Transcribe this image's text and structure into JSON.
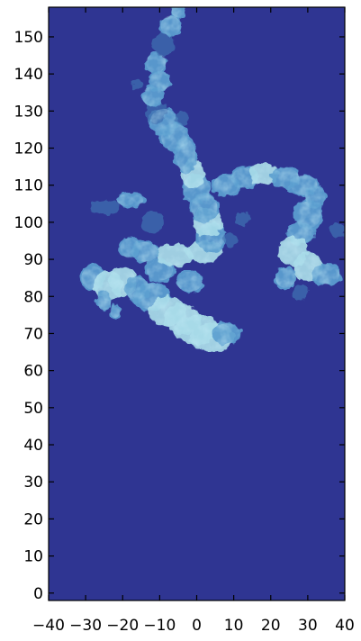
{
  "chart_data": {
    "type": "heatmap",
    "title": "",
    "xlabel": "",
    "ylabel": "",
    "xlim": [
      -40,
      40
    ],
    "ylim": [
      -2,
      158
    ],
    "x_ticks": [
      -40,
      -30,
      -20,
      -10,
      0,
      10,
      20,
      30,
      40
    ],
    "x_tick_labels": [
      "−40",
      "−30",
      "−20",
      "−10",
      "0",
      "10",
      "20",
      "30",
      "40"
    ],
    "y_ticks": [
      0,
      10,
      20,
      30,
      40,
      50,
      60,
      70,
      80,
      90,
      100,
      110,
      120,
      130,
      140,
      150
    ],
    "y_tick_labels": [
      "0",
      "10",
      "20",
      "30",
      "40",
      "50",
      "60",
      "70",
      "80",
      "90",
      "100",
      "110",
      "120",
      "130",
      "140",
      "150"
    ],
    "grid": false,
    "legend": "none",
    "colors": {
      "background": "#2f3592",
      "plume_dim": "#3f6fb0",
      "plume_mid": "#5c9fd0",
      "plume_bright": "#a8dbe8"
    },
    "plume_extent": {
      "x_range": [
        -32,
        40
      ],
      "y_range": [
        63,
        158
      ]
    }
  }
}
